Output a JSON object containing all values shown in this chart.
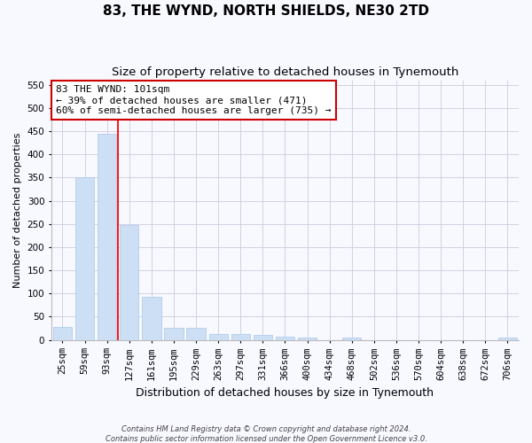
{
  "title": "83, THE WYND, NORTH SHIELDS, NE30 2TD",
  "subtitle": "Size of property relative to detached houses in Tynemouth",
  "xlabel": "Distribution of detached houses by size in Tynemouth",
  "ylabel": "Number of detached properties",
  "categories": [
    "25sqm",
    "59sqm",
    "93sqm",
    "127sqm",
    "161sqm",
    "195sqm",
    "229sqm",
    "263sqm",
    "297sqm",
    "331sqm",
    "366sqm",
    "400sqm",
    "434sqm",
    "468sqm",
    "502sqm",
    "536sqm",
    "570sqm",
    "604sqm",
    "638sqm",
    "672sqm",
    "706sqm"
  ],
  "values": [
    27,
    350,
    445,
    247,
    92,
    25,
    25,
    13,
    13,
    10,
    7,
    5,
    0,
    5,
    0,
    0,
    0,
    0,
    0,
    0,
    5
  ],
  "bar_color": "#ccdff5",
  "bar_edge_color": "#aac8e8",
  "red_line_index": 2,
  "annotation_line1": "83 THE WYND: 101sqm",
  "annotation_line2": "← 39% of detached houses are smaller (471)",
  "annotation_line3": "60% of semi-detached houses are larger (735) →",
  "annotation_box_color": "#ffffff",
  "annotation_box_edge_color": "#cc0000",
  "ylim": [
    0,
    560
  ],
  "yticks": [
    0,
    50,
    100,
    150,
    200,
    250,
    300,
    350,
    400,
    450,
    500,
    550
  ],
  "footer1": "Contains HM Land Registry data © Crown copyright and database right 2024.",
  "footer2": "Contains public sector information licensed under the Open Government Licence v3.0.",
  "background_color": "#f8f8ff",
  "grid_color": "#ccccdd",
  "title_fontsize": 11,
  "subtitle_fontsize": 9.5,
  "xlabel_fontsize": 9,
  "ylabel_fontsize": 8,
  "tick_fontsize": 7.5,
  "annotation_fontsize": 8,
  "footer_fontsize": 6
}
